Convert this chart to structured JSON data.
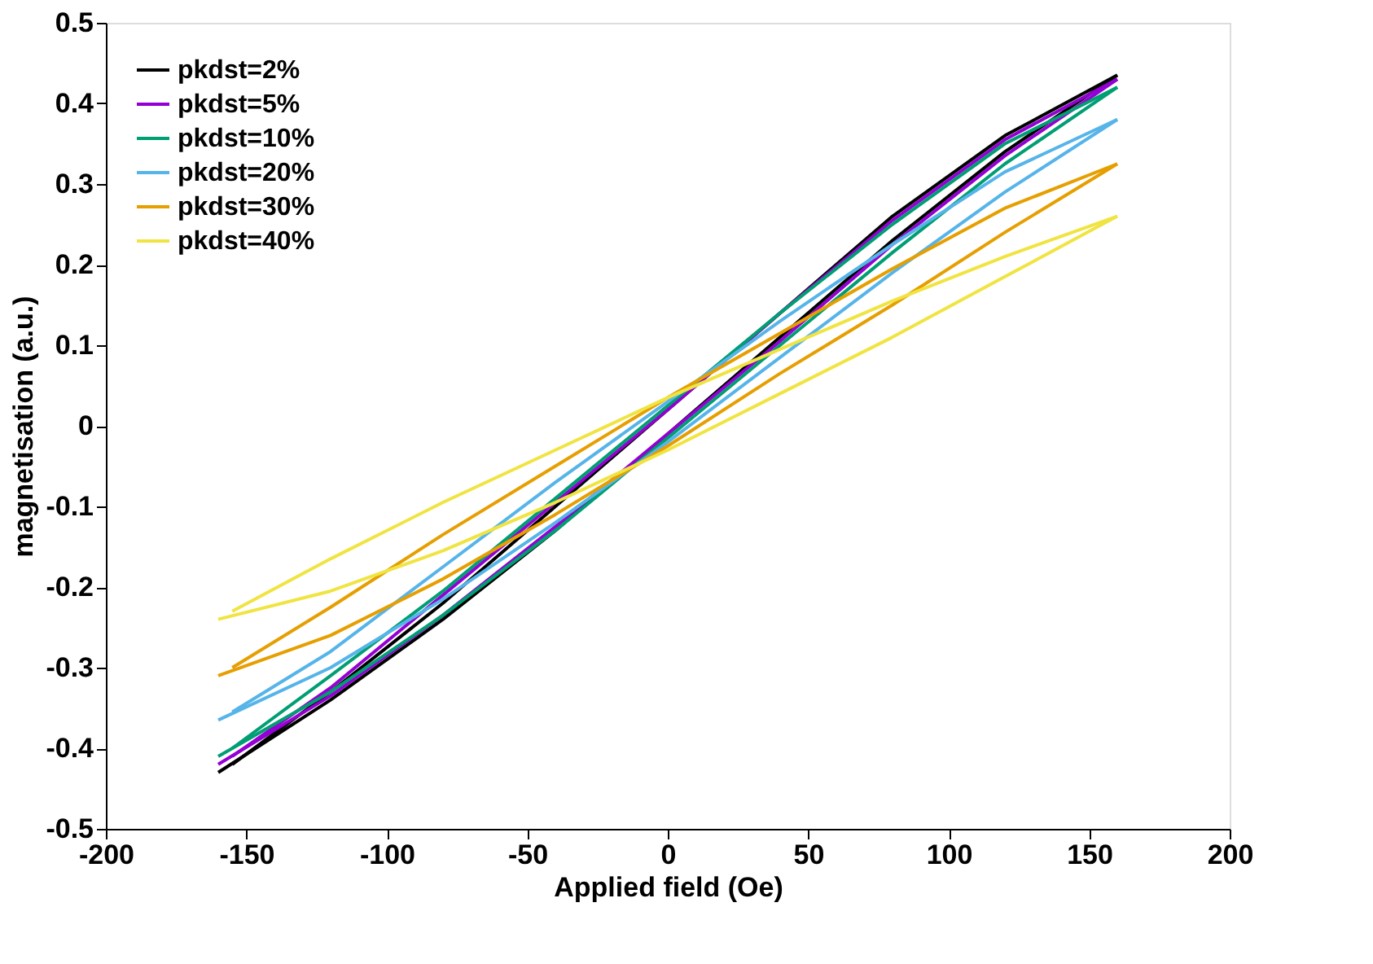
{
  "chart_data": {
    "type": "line",
    "xlabel": "Applied field (Oe)",
    "ylabel": "magnetisation (a.u.)",
    "xlim": [
      -200,
      200
    ],
    "xticks": [
      -200,
      -150,
      -100,
      -50,
      0,
      50,
      100,
      150,
      200
    ],
    "ylim": [
      -0.5,
      0.5
    ],
    "yticks": [
      -0.5,
      -0.4,
      -0.3,
      -0.2,
      -0.1,
      0,
      0.1,
      0.2,
      0.3,
      0.4,
      0.5
    ],
    "grid": false,
    "legend": "top left",
    "marker": "none",
    "line_style": "solid",
    "series": [
      {
        "name": "pkdst=2%",
        "color": "#000000",
        "x": [
          -160,
          -120,
          -80,
          -40,
          0,
          40,
          80,
          120,
          160
        ],
        "values": [
          -0.43,
          -0.34,
          -0.24,
          -0.13,
          -0.01,
          0.11,
          0.23,
          0.34,
          0.435
        ]
      },
      {
        "color": "#000000",
        "x": [
          160,
          120,
          80,
          40,
          0,
          -40,
          -80,
          -120,
          -155
        ],
        "values": [
          0.435,
          0.36,
          0.26,
          0.14,
          0.02,
          -0.1,
          -0.22,
          -0.33,
          -0.42
        ]
      },
      {
        "name": "pkdst=5%",
        "color": "#9400d3",
        "x": [
          -160,
          -120,
          -80,
          -40,
          0,
          40,
          80,
          120,
          160
        ],
        "values": [
          -0.42,
          -0.335,
          -0.235,
          -0.125,
          -0.01,
          0.105,
          0.225,
          0.335,
          0.43
        ]
      },
      {
        "color": "#9400d3",
        "x": [
          160,
          120,
          80,
          40,
          0,
          -40,
          -80,
          -120,
          -155
        ],
        "values": [
          0.43,
          0.355,
          0.255,
          0.14,
          0.02,
          -0.095,
          -0.21,
          -0.325,
          -0.41
        ]
      },
      {
        "name": "pkdst=10%",
        "color": "#009e73",
        "x": [
          -160,
          -120,
          -80,
          -40,
          0,
          40,
          80,
          120,
          160
        ],
        "values": [
          -0.41,
          -0.33,
          -0.235,
          -0.13,
          -0.015,
          0.1,
          0.215,
          0.325,
          0.42
        ]
      },
      {
        "color": "#009e73",
        "x": [
          160,
          120,
          80,
          40,
          0,
          -40,
          -80,
          -120,
          -155
        ],
        "values": [
          0.42,
          0.35,
          0.25,
          0.14,
          0.025,
          -0.09,
          -0.205,
          -0.31,
          -0.4
        ]
      },
      {
        "name": "pkdst=20%",
        "color": "#56b4e9",
        "x": [
          -160,
          -120,
          -80,
          -40,
          0,
          40,
          80,
          120,
          160
        ],
        "values": [
          -0.365,
          -0.3,
          -0.215,
          -0.12,
          -0.02,
          0.085,
          0.19,
          0.29,
          0.38
        ]
      },
      {
        "color": "#56b4e9",
        "x": [
          160,
          120,
          80,
          40,
          0,
          -40,
          -80,
          -120,
          -155
        ],
        "values": [
          0.38,
          0.315,
          0.225,
          0.13,
          0.03,
          -0.07,
          -0.175,
          -0.28,
          -0.355
        ]
      },
      {
        "name": "pkdst=30%",
        "color": "#e69f00",
        "x": [
          -160,
          -120,
          -80,
          -40,
          0,
          40,
          80,
          120,
          160
        ],
        "values": [
          -0.31,
          -0.26,
          -0.19,
          -0.11,
          -0.025,
          0.065,
          0.15,
          0.24,
          0.325
        ]
      },
      {
        "color": "#e69f00",
        "x": [
          160,
          120,
          80,
          40,
          0,
          -40,
          -80,
          -120,
          -155
        ],
        "values": [
          0.325,
          0.27,
          0.195,
          0.115,
          0.035,
          -0.05,
          -0.135,
          -0.225,
          -0.3
        ]
      },
      {
        "name": "pkdst=40%",
        "color": "#f0e442",
        "x": [
          -160,
          -120,
          -80,
          -40,
          0,
          40,
          80,
          120,
          160
        ],
        "values": [
          -0.24,
          -0.205,
          -0.155,
          -0.095,
          -0.03,
          0.04,
          0.11,
          0.185,
          0.26
        ]
      },
      {
        "color": "#f0e442",
        "x": [
          160,
          120,
          80,
          40,
          0,
          -40,
          -80,
          -120,
          -155
        ],
        "values": [
          0.26,
          0.21,
          0.155,
          0.095,
          0.035,
          -0.03,
          -0.095,
          -0.165,
          -0.23
        ]
      }
    ]
  }
}
